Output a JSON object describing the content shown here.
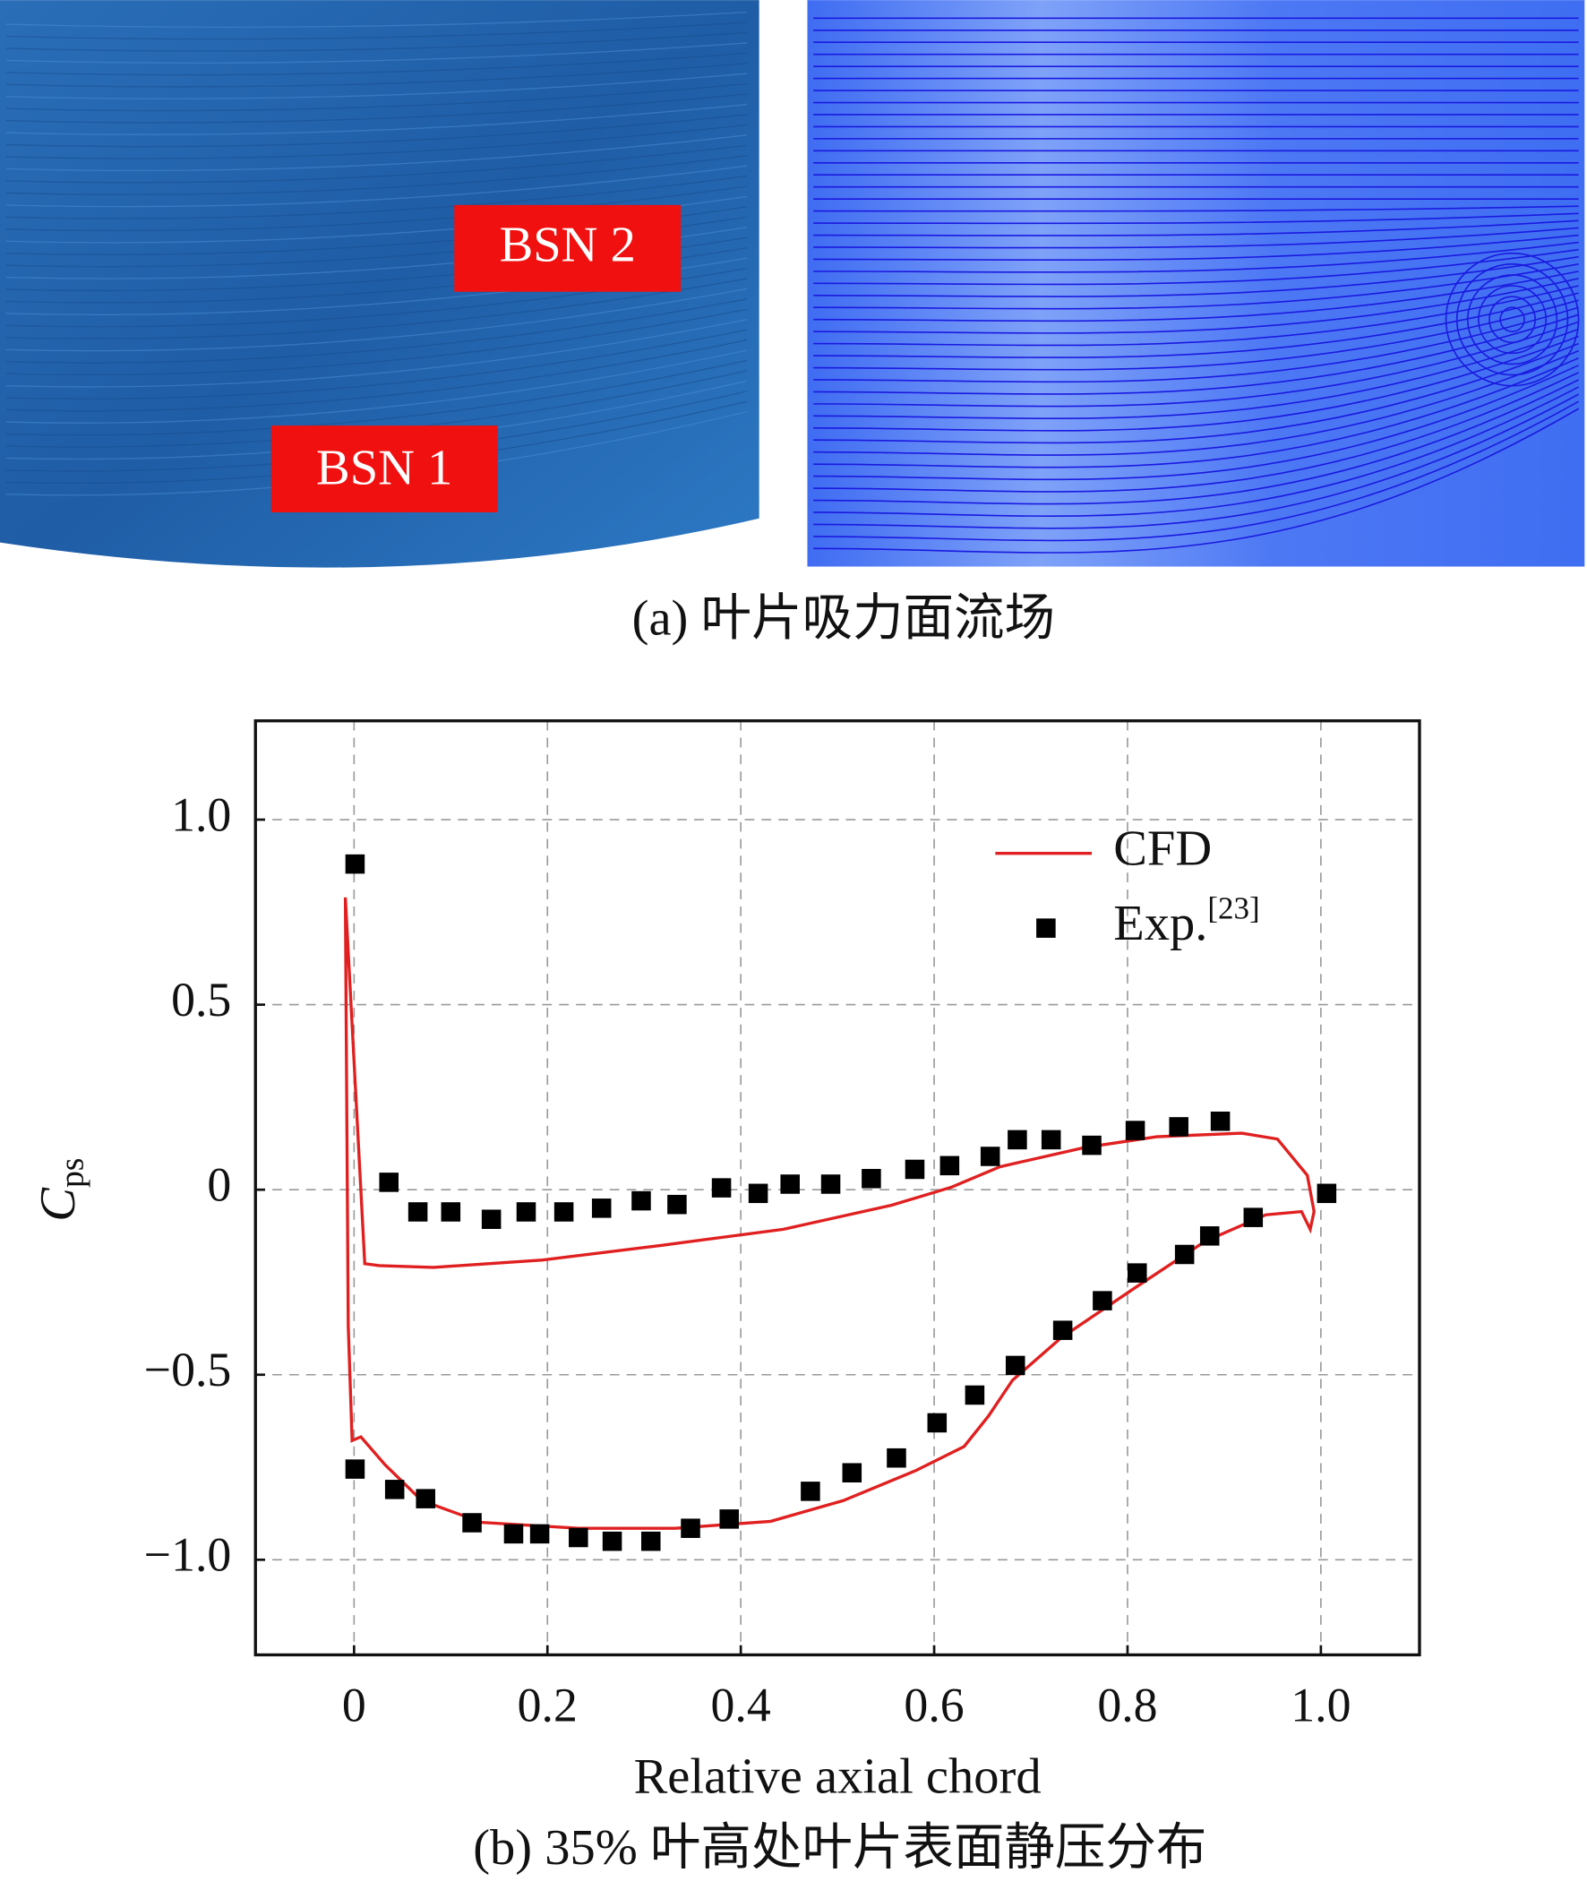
{
  "figure_a": {
    "labels": [
      "BSN 2",
      "BSN 1"
    ],
    "caption": "(a) 叶片吸力面流场"
  },
  "chart_data": {
    "type": "line",
    "xlabel": "Relative axial chord",
    "ylabel": "C",
    "ylabel_sub": "ps",
    "xlim": [
      -0.102,
      1.102
    ],
    "ylim": [
      -1.257,
      1.267
    ],
    "xticks": [
      0,
      0.2,
      0.4,
      0.6,
      0.8,
      {
        "value": 1,
        "label": "1.0"
      }
    ],
    "yticks": [
      {
        "value": -1,
        "label": "−1.0"
      },
      {
        "value": -0.5,
        "label": "−0.5"
      },
      0,
      0.5,
      {
        "value": 1,
        "label": "1.0"
      }
    ],
    "grid": true,
    "legend": "upper right",
    "series": [
      {
        "name": "CFD",
        "color": "#e02020",
        "kind": "line",
        "x": [
          -0.009,
          0.011,
          0.026,
          0.082,
          0.195,
          0.319,
          0.444,
          0.556,
          0.618,
          0.668,
          0.756,
          0.83,
          0.918,
          0.955,
          0.986,
          0.993,
          0.989,
          0.98,
          0.943,
          0.88,
          0.805,
          0.731,
          0.681,
          0.656,
          0.631,
          0.581,
          0.506,
          0.431,
          0.332,
          0.232,
          0.132,
          0.07,
          0.032,
          0.007,
          -0.002,
          -0.006,
          -0.009
        ],
        "values": [
          0.79,
          -0.2,
          -0.205,
          -0.21,
          -0.19,
          -0.15,
          -0.107,
          -0.042,
          0.007,
          0.062,
          0.114,
          0.143,
          0.153,
          0.137,
          0.039,
          -0.059,
          -0.107,
          -0.059,
          -0.068,
          -0.14,
          -0.27,
          -0.401,
          -0.515,
          -0.612,
          -0.694,
          -0.759,
          -0.84,
          -0.896,
          -0.915,
          -0.915,
          -0.899,
          -0.84,
          -0.743,
          -0.668,
          -0.678,
          -0.368,
          0.79
        ]
      },
      {
        "name": "Exp.",
        "reference": "[23]",
        "color": "#000000",
        "kind": "scatter",
        "x": [
          0.001,
          0.036,
          0.066,
          0.1,
          0.142,
          0.178,
          0.217,
          0.256,
          0.297,
          0.334,
          0.38,
          0.418,
          0.451,
          0.493,
          0.535,
          0.58,
          0.616,
          0.658,
          0.686,
          0.721,
          0.763,
          0.808,
          0.853,
          0.896,
          1.006,
          0.93,
          0.885,
          0.859,
          0.81,
          0.774,
          0.733,
          0.684,
          0.642,
          0.603,
          0.561,
          0.515,
          0.472,
          0.388,
          0.348,
          0.307,
          0.267,
          0.232,
          0.192,
          0.165,
          0.122,
          0.074,
          0.042,
          0.001
        ],
        "values": [
          0.88,
          0.02,
          -0.06,
          -0.06,
          -0.08,
          -0.06,
          -0.06,
          -0.05,
          -0.03,
          -0.04,
          0.005,
          -0.01,
          0.015,
          0.015,
          0.03,
          0.055,
          0.065,
          0.09,
          0.135,
          0.135,
          0.12,
          0.16,
          0.17,
          0.185,
          -0.01,
          -0.075,
          -0.125,
          -0.175,
          -0.225,
          -0.3,
          -0.38,
          -0.475,
          -0.555,
          -0.63,
          -0.725,
          -0.765,
          -0.815,
          -0.89,
          -0.915,
          -0.95,
          -0.95,
          -0.94,
          -0.93,
          -0.93,
          -0.9,
          -0.835,
          -0.81,
          -0.755
        ]
      }
    ]
  },
  "caption_b": "(b) 35% 叶高处叶片表面静压分布"
}
